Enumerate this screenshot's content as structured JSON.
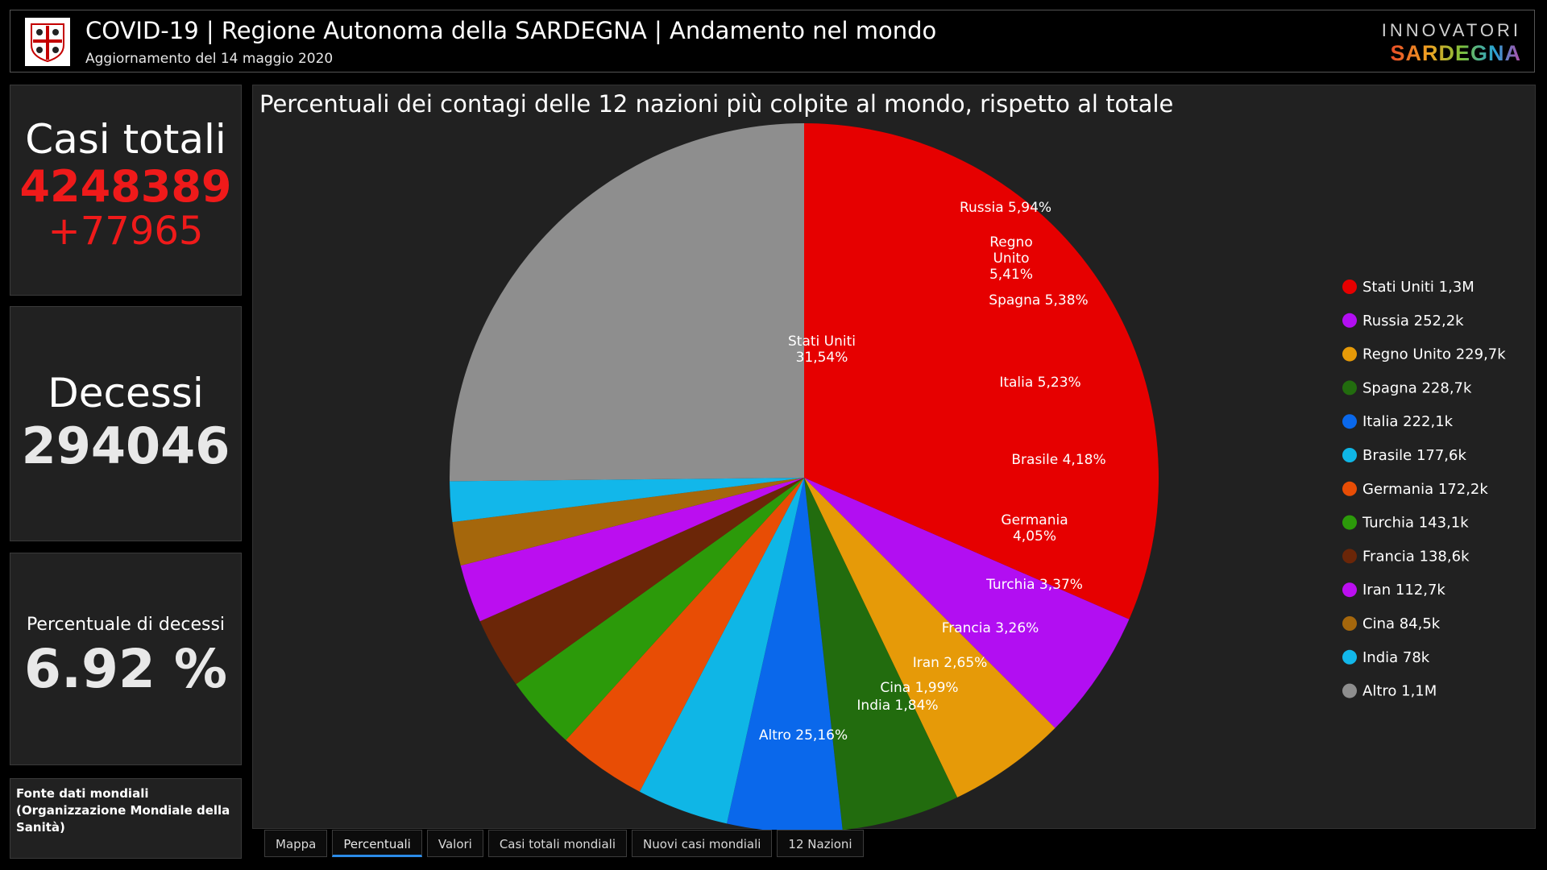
{
  "header": {
    "title": "COVID-19 | Regione Autonoma della SARDEGNA | Andamento nel mondo",
    "subtitle": "Aggiornamento del 14 maggio 2020",
    "brand_top": "INNOVATORI",
    "brand_bottom": "SARDEGNA"
  },
  "cards": {
    "total_label": "Casi totali",
    "total_value": "4248389",
    "total_delta": "+77965",
    "deaths_label": "Decessi",
    "deaths_value": "294046",
    "pct_label": "Percentuale di decessi",
    "pct_value": "6.92 %",
    "source_text": "Fonte dati mondiali (Organizzazione Mondiale della Sanità)"
  },
  "tabs": [
    {
      "label": "Mappa",
      "active": false
    },
    {
      "label": "Percentuali",
      "active": true
    },
    {
      "label": "Valori",
      "active": false
    },
    {
      "label": "Casi totali mondiali",
      "active": false
    },
    {
      "label": "Nuovi casi mondiali",
      "active": false
    },
    {
      "label": "12 Nazioni",
      "active": false
    }
  ],
  "colors": {
    "background": "#000000",
    "panel": "#212121",
    "accent_red": "#ef1a1a",
    "tab_active": "#2b8be8"
  },
  "chart_data": {
    "type": "pie",
    "title": "Percentuali dei contagi delle 12 nazioni più colpite al mondo, rispetto al totale",
    "legend_position": "right",
    "slices": [
      {
        "name": "Stati Uniti",
        "percent": 31.54,
        "label": "Stati Uniti 31,54%",
        "legend": "Stati Uniti 1,3M",
        "color": "#e60000"
      },
      {
        "name": "Russia",
        "percent": 5.94,
        "label": "Russia 5,94%",
        "legend": "Russia 252,2k",
        "color": "#b20ef2"
      },
      {
        "name": "Regno Unito",
        "percent": 5.41,
        "label": "Regno Unito 5,41%",
        "legend": "Regno Unito 229,7k",
        "color": "#e69a08"
      },
      {
        "name": "Spagna",
        "percent": 5.38,
        "label": "Spagna 5,38%",
        "legend": "Spagna 228,7k",
        "color": "#226c0e"
      },
      {
        "name": "Italia",
        "percent": 5.23,
        "label": "Italia 5,23%",
        "legend": "Italia 222,1k",
        "color": "#0a68eb"
      },
      {
        "name": "Brasile",
        "percent": 4.18,
        "label": "Brasile 4,18%",
        "legend": "Brasile 177,6k",
        "color": "#0fb6e6"
      },
      {
        "name": "Germania",
        "percent": 4.05,
        "label": "Germania 4,05%",
        "legend": "Germania 172,2k",
        "color": "#e84d05"
      },
      {
        "name": "Turchia",
        "percent": 3.37,
        "label": "Turchia 3,37%",
        "legend": "Turchia 143,1k",
        "color": "#2c9a0a"
      },
      {
        "name": "Francia",
        "percent": 3.26,
        "label": "Francia 3,26%",
        "legend": "Francia 138,6k",
        "color": "#6b2608"
      },
      {
        "name": "Iran",
        "percent": 2.65,
        "label": "Iran 2,65%",
        "legend": "Iran 112,7k",
        "color": "#bb0ef0"
      },
      {
        "name": "Cina",
        "percent": 1.99,
        "label": "Cina 1,99%",
        "legend": "Cina 84,5k",
        "color": "#a5670c"
      },
      {
        "name": "India",
        "percent": 1.84,
        "label": "India 1,84%",
        "legend": "India 78k",
        "color": "#12b7ea"
      },
      {
        "name": "Altro",
        "percent": 25.16,
        "label": "Altro 25,16%",
        "legend": "Altro 1,1M",
        "color": "#8e8e8e"
      }
    ]
  }
}
